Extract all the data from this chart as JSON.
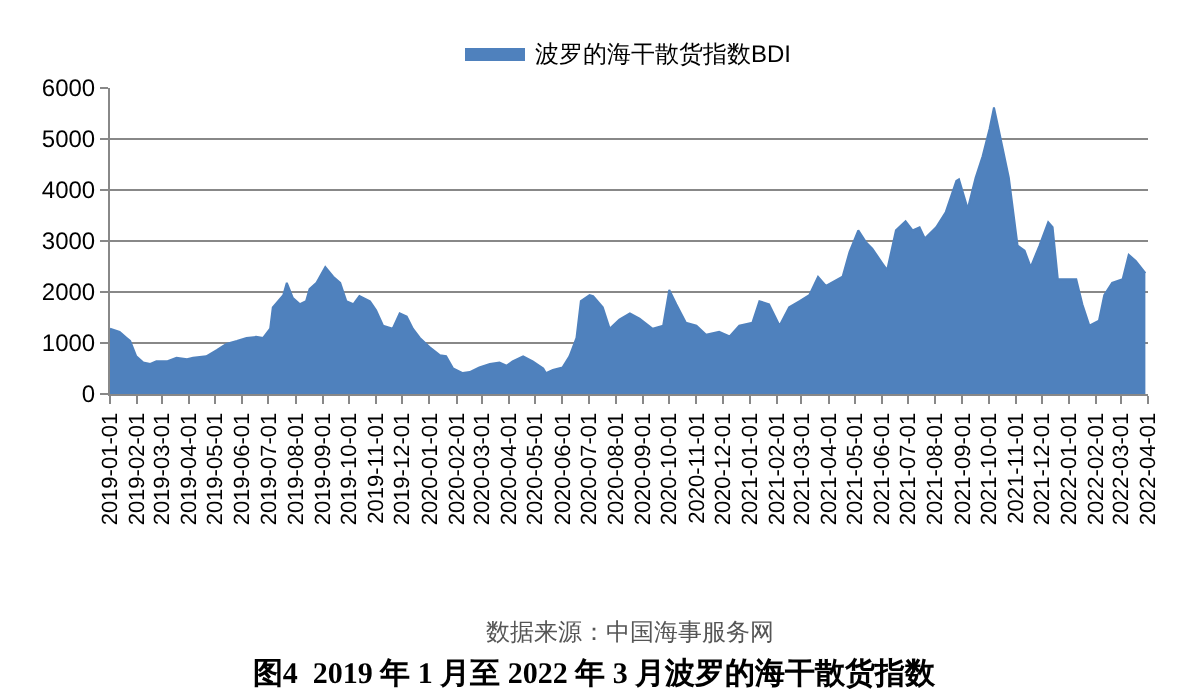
{
  "chart_data": {
    "type": "area",
    "title": "图4  2019 年 1 月至 2022 年 3 月波罗的海干散货指数",
    "annotations": [
      "数据来源：中国海事服务网"
    ],
    "series": [
      {
        "name": "波罗的海干散货指数BDI",
        "color": "#4f81bd",
        "x": [
          "2019-01-01",
          "2019-01-12",
          "2019-01-20",
          "2019-01-24",
          "2019-01-31",
          "2019-02-08",
          "2019-02-16",
          "2019-02-23",
          "2019-03-07",
          "2019-03-18",
          "2019-03-30",
          "2019-04-06",
          "2019-04-21",
          "2019-05-03",
          "2019-05-14",
          "2019-05-26",
          "2019-06-06",
          "2019-06-17",
          "2019-06-25",
          "2019-07-03",
          "2019-07-06",
          "2019-07-18",
          "2019-07-22",
          "2019-07-29",
          "2019-08-06",
          "2019-08-13",
          "2019-08-17",
          "2019-08-25",
          "2019-09-04",
          "2019-09-13",
          "2019-09-21",
          "2019-09-28",
          "2019-10-06",
          "2019-10-13",
          "2019-10-25",
          "2019-11-01",
          "2019-11-09",
          "2019-11-20",
          "2019-11-28",
          "2019-12-06",
          "2019-12-13",
          "2019-12-21",
          "2020-01-01",
          "2020-01-13",
          "2020-01-20",
          "2020-01-28",
          "2020-02-08",
          "2020-02-16",
          "2020-02-27",
          "2020-03-10",
          "2020-03-21",
          "2020-03-29",
          "2020-04-05",
          "2020-04-17",
          "2020-04-28",
          "2020-05-10",
          "2020-05-13",
          "2020-05-21",
          "2020-06-01",
          "2020-06-09",
          "2020-06-17",
          "2020-06-22",
          "2020-07-02",
          "2020-07-06",
          "2020-07-17",
          "2020-07-25",
          "2020-08-05",
          "2020-08-17",
          "2020-08-28",
          "2020-09-12",
          "2020-09-24",
          "2020-10-01",
          "2020-10-09",
          "2020-10-20",
          "2020-11-01",
          "2020-11-12",
          "2020-11-27",
          "2020-12-09",
          "2020-12-20",
          "2021-01-04",
          "2021-01-12",
          "2021-01-23",
          "2021-02-04",
          "2021-02-15",
          "2021-02-27",
          "2021-03-10",
          "2021-03-20",
          "2021-03-29",
          "2021-04-17",
          "2021-04-25",
          "2021-05-05",
          "2021-05-14",
          "2021-05-21",
          "2021-06-02",
          "2021-06-07",
          "2021-06-17",
          "2021-06-28",
          "2021-07-06",
          "2021-07-14",
          "2021-07-20",
          "2021-08-02",
          "2021-08-13",
          "2021-08-25",
          "2021-08-28",
          "2021-09-07",
          "2021-09-16",
          "2021-09-24",
          "2021-10-02",
          "2021-10-07",
          "2021-10-13",
          "2021-10-24",
          "2021-11-03",
          "2021-11-11",
          "2021-11-18",
          "2021-11-28",
          "2021-12-08",
          "2021-12-13",
          "2021-12-19",
          "2022-01-01",
          "2022-01-09",
          "2022-01-16",
          "2022-01-24",
          "2022-02-04",
          "2022-02-10",
          "2022-02-19",
          "2022-03-03",
          "2022-03-10",
          "2022-03-18",
          "2022-03-29"
        ],
        "values": [
          1280,
          1220,
          1100,
          1040,
          740,
          620,
          590,
          640,
          640,
          710,
          680,
          710,
          740,
          860,
          980,
          1040,
          1100,
          1120,
          1100,
          1280,
          1700,
          1940,
          2180,
          1880,
          1760,
          1820,
          2060,
          2180,
          2490,
          2300,
          2180,
          1820,
          1760,
          1920,
          1820,
          1640,
          1340,
          1280,
          1580,
          1520,
          1280,
          1100,
          920,
          760,
          740,
          500,
          410,
          430,
          520,
          590,
          615,
          555,
          640,
          740,
          640,
          500,
          410,
          470,
          520,
          740,
          1100,
          1820,
          1940,
          1920,
          1700,
          1280,
          1460,
          1580,
          1480,
          1280,
          1340,
          2040,
          1760,
          1400,
          1340,
          1160,
          1220,
          1130,
          1340,
          1400,
          1820,
          1760,
          1340,
          1700,
          1820,
          1940,
          2300,
          2120,
          2300,
          2790,
          3210,
          2970,
          2850,
          2550,
          2430,
          3210,
          3390,
          3210,
          3270,
          3050,
          3270,
          3570,
          4180,
          4210,
          3630,
          4240,
          4660,
          5200,
          5620,
          5140,
          4240,
          2910,
          2810,
          2490,
          2910,
          3370,
          3270,
          2250,
          2250,
          2250,
          1760,
          1340,
          1440,
          1940,
          2180,
          2250,
          2730,
          2610,
          2370
        ]
      }
    ],
    "xlim": [
      "2019-01-01",
      "2022-04-01"
    ],
    "xticks": [
      "2019-01-01",
      "2019-02-01",
      "2019-03-01",
      "2019-04-01",
      "2019-05-01",
      "2019-06-01",
      "2019-07-01",
      "2019-08-01",
      "2019-09-01",
      "2019-10-01",
      "2019-11-01",
      "2019-12-01",
      "2020-01-01",
      "2020-02-01",
      "2020-03-01",
      "2020-04-01",
      "2020-05-01",
      "2020-06-01",
      "2020-07-01",
      "2020-08-01",
      "2020-09-01",
      "2020-10-01",
      "2020-11-01",
      "2020-12-01",
      "2021-01-01",
      "2021-02-01",
      "2021-03-01",
      "2021-04-01",
      "2021-05-01",
      "2021-06-01",
      "2021-07-01",
      "2021-08-01",
      "2021-09-01",
      "2021-10-01",
      "2021-11-01",
      "2021-12-01",
      "2022-01-01",
      "2022-02-01",
      "2022-03-01",
      "2022-04-01"
    ],
    "ylim": [
      0,
      6000
    ],
    "yticks": [
      0,
      1000,
      2000,
      3000,
      4000,
      5000,
      6000
    ],
    "grid": "y",
    "legend": "top"
  }
}
